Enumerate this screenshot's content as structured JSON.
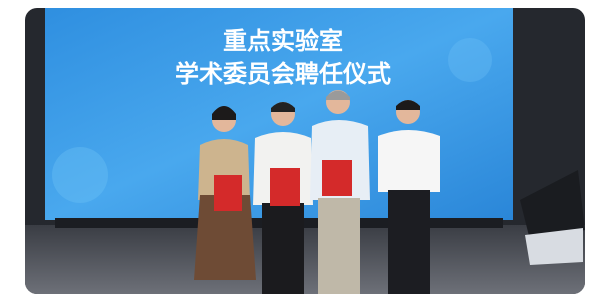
{
  "image": {
    "screen_text": [
      "重点实验室",
      "学术委员会聘任仪式"
    ]
  }
}
